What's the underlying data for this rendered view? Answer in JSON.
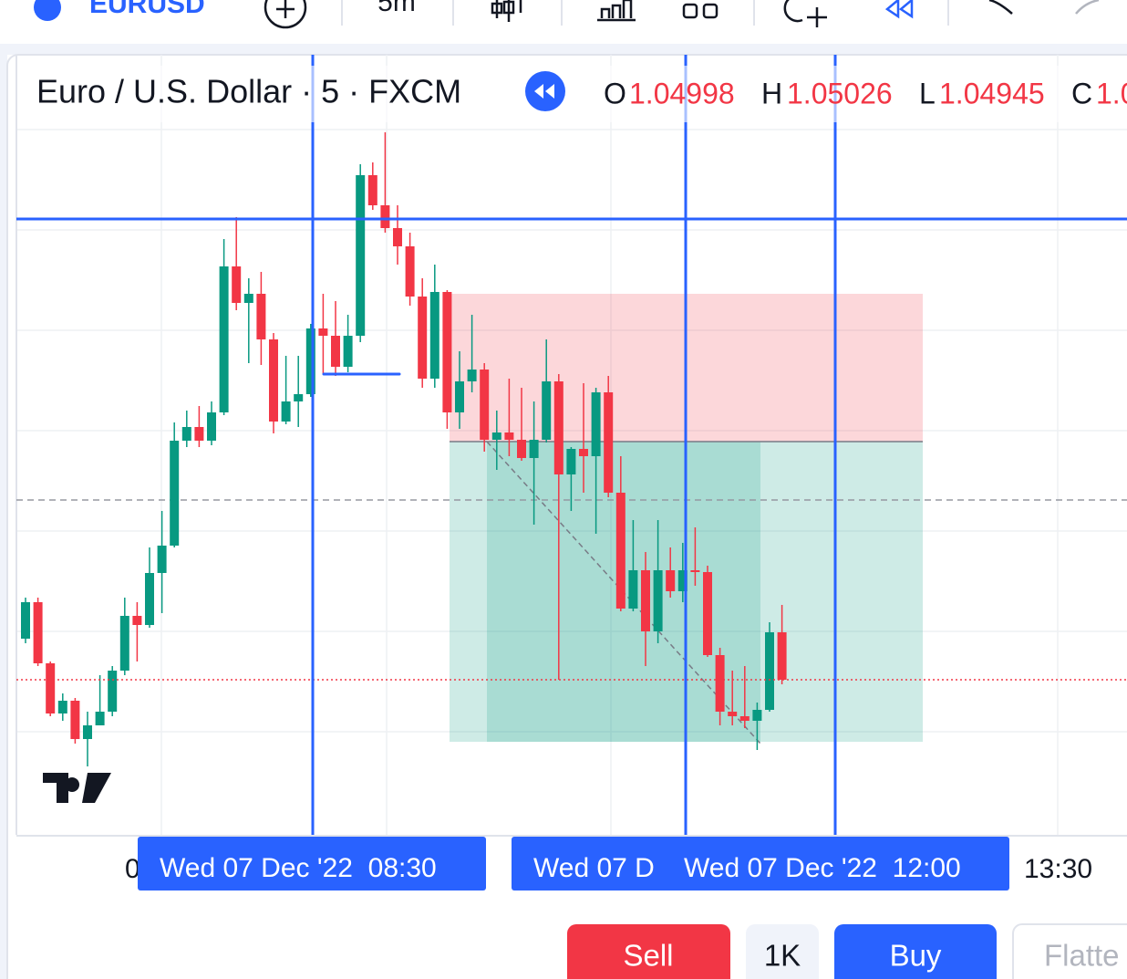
{
  "toolbar": {
    "symbol": "EURUSD",
    "interval": "5m"
  },
  "header": {
    "title": "Euro / U.S. Dollar · 5 · FXCM",
    "ohlc": [
      {
        "label": "O",
        "value": "1.04998"
      },
      {
        "label": "H",
        "value": "1.05026"
      },
      {
        "label": "L",
        "value": "1.04945"
      },
      {
        "label": "C",
        "value": "1.0"
      }
    ]
  },
  "chart_data": {
    "type": "candlestick",
    "up_color": "#089981",
    "down_color": "#f23645",
    "ylim": [
      1.04785,
      1.0556
    ],
    "open": [
      1.05,
      1.0504,
      1.04973,
      1.04918,
      1.04932,
      1.0489,
      1.04905,
      1.0492,
      1.04965,
      1.05025,
      1.05015,
      1.05072,
      1.05102,
      1.05217,
      1.05232,
      1.05217,
      1.05248,
      1.05408,
      1.05368,
      1.05378,
      1.05328,
      1.05238,
      1.0526,
      1.05268,
      1.0534,
      1.05332,
      1.05298,
      1.05332,
      1.05508,
      1.05475,
      1.0545,
      1.0543,
      1.05375,
      1.05285,
      1.0538,
      1.05248,
      1.05282,
      1.05295,
      1.05218,
      1.05226,
      1.05218,
      1.05198,
      1.05218,
      1.05282,
      1.0518,
      1.05208,
      1.052,
      1.0527,
      1.0516,
      1.05033,
      1.05075,
      1.05008,
      1.05075,
      1.05052,
      1.05075,
      1.05073,
      1.04982,
      1.0492,
      1.04915,
      1.0491,
      1.04922,
      1.05007
    ],
    "high": [
      1.05045,
      1.05045,
      1.04975,
      1.0494,
      1.04935,
      1.0492,
      1.0496,
      1.0497,
      1.05045,
      1.0504,
      1.051,
      1.0514,
      1.05237,
      1.0525,
      1.05255,
      1.0526,
      1.05438,
      1.05462,
      1.05395,
      1.05402,
      1.05335,
      1.0531,
      1.0531,
      1.05345,
      1.05378,
      1.0537,
      1.05355,
      1.0552,
      1.05522,
      1.05555,
      1.05475,
      1.05445,
      1.05395,
      1.0541,
      1.05382,
      1.05315,
      1.05355,
      1.05302,
      1.0525,
      1.05285,
      1.05275,
      1.0526,
      1.05328,
      1.0529,
      1.0521,
      1.0528,
      1.05275,
      1.05288,
      1.052,
      1.0513,
      1.05095,
      1.0513,
      1.051,
      1.05105,
      1.05122,
      1.0508,
      1.0499,
      1.04965,
      1.0497,
      1.0493,
      1.05018,
      1.05037
    ],
    "low": [
      1.04995,
      1.0497,
      1.04915,
      1.0491,
      1.04885,
      1.0486,
      1.04905,
      1.04915,
      1.0496,
      1.04975,
      1.05012,
      1.05028,
      1.051,
      1.0521,
      1.0521,
      1.05212,
      1.05245,
      1.0536,
      1.05302,
      1.053,
      1.05225,
      1.05235,
      1.05232,
      1.05265,
      1.0529,
      1.05288,
      1.05292,
      1.05325,
      1.0547,
      1.05445,
      1.0541,
      1.05365,
      1.05275,
      1.05275,
      1.0523,
      1.0523,
      1.0527,
      1.05205,
      1.05185,
      1.052,
      1.05195,
      1.05125,
      1.05215,
      1.04955,
      1.0514,
      1.0516,
      1.05115,
      1.05155,
      1.0503,
      1.0503,
      1.0497,
      1.04995,
      1.05045,
      1.0504,
      1.05058,
      1.0498,
      1.04905,
      1.04905,
      1.04902,
      1.04878,
      1.0492,
      1.0495
    ],
    "close": [
      1.0504,
      1.04973,
      1.04918,
      1.04932,
      1.0489,
      1.04905,
      1.0492,
      1.04965,
      1.05025,
      1.05015,
      1.05072,
      1.05102,
      1.05217,
      1.05232,
      1.05217,
      1.05248,
      1.05408,
      1.05368,
      1.05378,
      1.05328,
      1.05238,
      1.0526,
      1.05268,
      1.0534,
      1.05332,
      1.05298,
      1.05332,
      1.05508,
      1.05475,
      1.0545,
      1.0543,
      1.05375,
      1.05285,
      1.0538,
      1.05248,
      1.05282,
      1.05295,
      1.05218,
      1.05226,
      1.05218,
      1.05198,
      1.05218,
      1.05282,
      1.0518,
      1.05208,
      1.052,
      1.0527,
      1.0516,
      1.05033,
      1.05075,
      1.05008,
      1.05075,
      1.05052,
      1.05075,
      1.05073,
      1.04982,
      1.0492,
      1.04915,
      1.0491,
      1.04922,
      1.05007,
      1.04955
    ]
  },
  "time_labels": [
    "0",
    "Wed 07 Dec '22  08:30",
    "Wed 07 D",
    "Wed 07 Dec '22  12:00",
    "13:30"
  ],
  "buttons": {
    "sell": "Sell",
    "quantity": "1K",
    "buy": "Buy",
    "flatten": "Flatte"
  }
}
